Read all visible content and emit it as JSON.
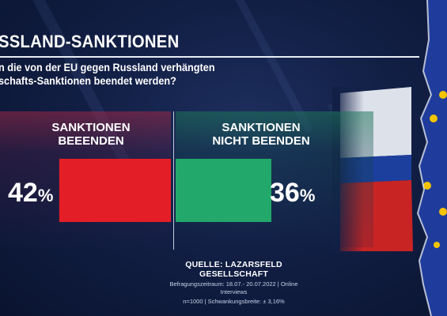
{
  "title": "SSLAND-SANKTIONEN",
  "question": {
    "line1": "n die von der EU gegen Russland verhängten",
    "line2": "schafts-Sanktionen beendet werden?"
  },
  "chart_data": {
    "type": "bar",
    "categories": [
      "SANKTIONEN BEEENDEN",
      "SANKTIONEN NICHT BEENDEN"
    ],
    "values": [
      42,
      36
    ],
    "value_labels": [
      "42",
      "36"
    ],
    "unit": "%",
    "colors": [
      "#e31e26",
      "#22a86a"
    ],
    "ylim": [
      0,
      45
    ]
  },
  "categories_display": {
    "left_line1": "SANKTIONEN",
    "left_line2": "BEEENDEN",
    "right_line1": "SANKTIONEN",
    "right_line2": "NICHT BEENDEN"
  },
  "source": {
    "label": "QUELLE:  LAZARSFELD GESELLSCHAFT",
    "line1": "Befragungszeitraum: 18.07.- 20.07.2022 | Online Interviews",
    "line2": "n=1000 |  Schwankungsbreite: ± 3,16%"
  },
  "decor": {
    "eu_flag_color": "#1f3c9c",
    "eu_star_color": "#f5c400",
    "ru_flag_colors": [
      "#ffffff",
      "#1c3f9e",
      "#d42a2a"
    ],
    "flag_icons": [
      "russia-flag-icon",
      "eu-flag-icon"
    ]
  }
}
